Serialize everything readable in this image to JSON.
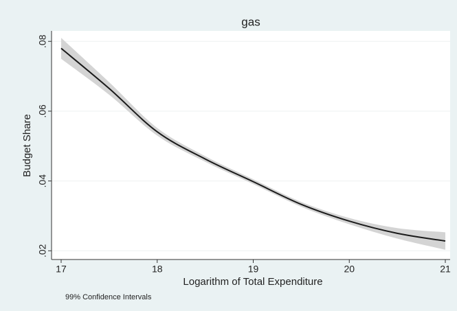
{
  "chart_data": {
    "type": "line",
    "title": "gas",
    "x_label": "Logarithm of Total Expenditure",
    "y_label": "Budget Share",
    "note": "99% Confidence Intervals",
    "x": [
      17,
      17.5,
      18,
      18.5,
      19,
      19.5,
      20,
      20.5,
      21
    ],
    "values": [
      0.078,
      0.0665,
      0.0541,
      0.0463,
      0.0398,
      0.0333,
      0.0285,
      0.025,
      0.0228
    ],
    "ci_upper": [
      0.081,
      0.0683,
      0.0552,
      0.0471,
      0.0405,
      0.034,
      0.0294,
      0.0265,
      0.0253
    ],
    "ci_lower": [
      0.075,
      0.0647,
      0.053,
      0.0455,
      0.0391,
      0.0326,
      0.0276,
      0.0235,
      0.0203
    ],
    "color": "#1a1a1a",
    "band_color": "#d4d4d4",
    "xlim": [
      16.9,
      21.05
    ],
    "xticks": [
      17,
      18,
      19,
      20,
      21
    ],
    "ylim": [
      0.0175,
      0.083
    ],
    "yticks": [
      {
        "value": 0.02,
        "label": ".02"
      },
      {
        "value": 0.04,
        "label": ".04"
      },
      {
        "value": 0.06,
        "label": ".06"
      },
      {
        "value": 0.08,
        "label": ".08"
      }
    ],
    "grid": true
  }
}
